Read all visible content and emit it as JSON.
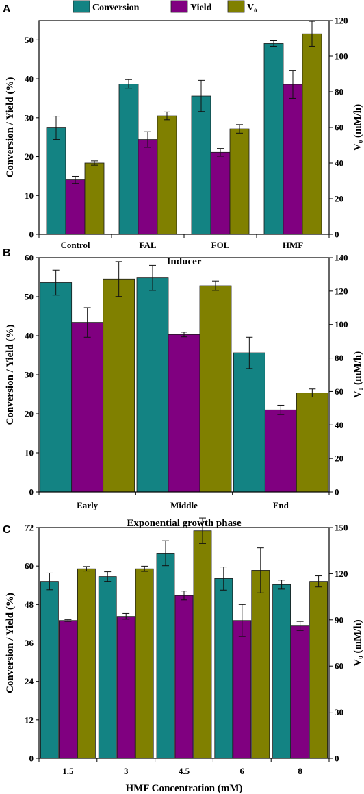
{
  "legend": {
    "items": [
      {
        "label": "Conversion",
        "color": "#138383"
      },
      {
        "label": "Yield",
        "color": "#800080"
      },
      {
        "label": "V₀",
        "color": "#808000"
      }
    ]
  },
  "chart_data": [
    {
      "panel": "A",
      "type": "bar",
      "xlabel": "Inducer",
      "ylabel": "Conversion / Yield (%)",
      "ylabel_right": "V₀ (mM/h)",
      "categories": [
        "Control",
        "FAL",
        "FOL",
        "HMF"
      ],
      "ylim": [
        0,
        55
      ],
      "yticks": [
        0,
        10,
        20,
        30,
        40,
        50
      ],
      "ylim_right": [
        0,
        120
      ],
      "yticks_right": [
        0,
        20,
        40,
        60,
        80,
        100,
        120
      ],
      "series": [
        {
          "name": "Conversion",
          "axis": "left",
          "values": [
            27.4,
            38.7,
            35.6,
            49.1
          ],
          "errors": [
            3.0,
            1.1,
            4.0,
            0.7
          ]
        },
        {
          "name": "Yield",
          "axis": "left",
          "values": [
            14.0,
            24.4,
            21.1,
            38.6
          ],
          "errors": [
            0.9,
            2.0,
            1.0,
            3.6
          ]
        },
        {
          "name": "V₀",
          "axis": "right",
          "values": [
            40.0,
            66.5,
            59.2,
            112.6
          ],
          "errors": [
            1.2,
            2.2,
            2.4,
            7.0
          ]
        }
      ]
    },
    {
      "panel": "B",
      "type": "bar",
      "xlabel": "Exponential growth phase",
      "ylabel": "Conversion / Yield (%)",
      "ylabel_right": "V₀ (mM/h)",
      "categories": [
        "Early",
        "Middle",
        "End"
      ],
      "ylim": [
        0,
        60
      ],
      "yticks": [
        0,
        10,
        20,
        30,
        40,
        50,
        60
      ],
      "ylim_right": [
        0,
        140
      ],
      "yticks_right": [
        0,
        20,
        40,
        60,
        80,
        100,
        120,
        140
      ],
      "series": [
        {
          "name": "Conversion",
          "axis": "left",
          "values": [
            53.6,
            54.8,
            35.6
          ],
          "errors": [
            3.2,
            3.2,
            4.0
          ]
        },
        {
          "name": "Yield",
          "axis": "left",
          "values": [
            43.4,
            40.3,
            21.0
          ],
          "errors": [
            3.8,
            0.6,
            1.2
          ]
        },
        {
          "name": "V₀",
          "axis": "right",
          "values": [
            127.2,
            123.2,
            59.1
          ],
          "errors": [
            10.4,
            2.8,
            2.4
          ]
        }
      ]
    },
    {
      "panel": "C",
      "type": "bar",
      "xlabel": "HMF Concentration (mM)",
      "ylabel": "Conversion / Yield (%)",
      "ylabel_right": "V₀ (mM/h)",
      "categories": [
        "1.5",
        "3",
        "4.5",
        "6",
        "8"
      ],
      "ylim": [
        0,
        72
      ],
      "yticks": [
        0,
        12,
        24,
        36,
        48,
        60,
        72
      ],
      "ylim_right": [
        0,
        150
      ],
      "yticks_right": [
        0,
        30,
        60,
        90,
        120,
        150
      ],
      "series": [
        {
          "name": "Conversion",
          "axis": "left",
          "values": [
            55.2,
            56.7,
            64.0,
            56.1,
            54.2
          ],
          "errors": [
            2.6,
            1.5,
            3.9,
            3.6,
            1.4
          ]
        },
        {
          "name": "Yield",
          "axis": "left",
          "values": [
            43.0,
            44.3,
            50.8,
            43.0,
            41.3
          ],
          "errors": [
            0.3,
            0.9,
            1.4,
            5.0,
            1.4
          ]
        },
        {
          "name": "V₀",
          "axis": "right",
          "values": [
            123.2,
            123.2,
            147.9,
            122.2,
            115.0
          ],
          "errors": [
            1.5,
            1.7,
            8.3,
            14.6,
            3.6
          ]
        }
      ]
    }
  ]
}
